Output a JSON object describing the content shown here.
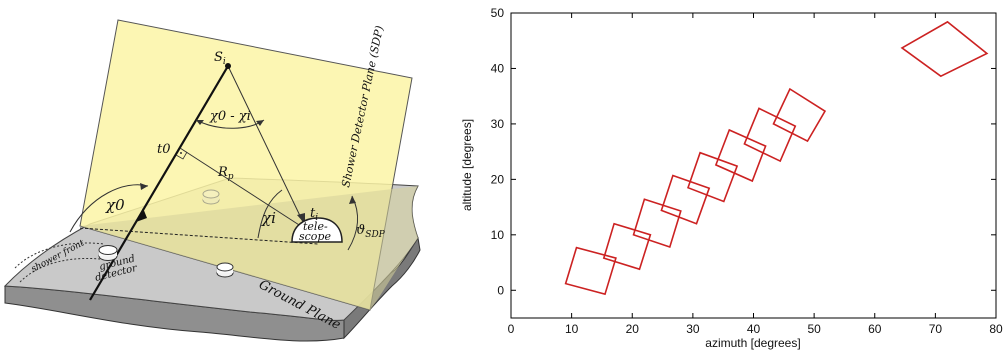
{
  "diagram": {
    "plane_label": "Shower Detector Plane (SDP)",
    "point_label_S": "S",
    "point_label_S_sub": "i",
    "angle_chi0_minus_chii": "χ0 - χi",
    "t0_label": "t0",
    "R_label": "R",
    "R_sub": "p",
    "chi0_label": "χ0",
    "chii_label": "χi",
    "ti_label": "t",
    "ti_sub": "i",
    "telescope_line1": "tele-",
    "telescope_line2": "scope",
    "theta_label": "ϑ",
    "theta_sub": "SDP",
    "shower_front_label": "shower front",
    "ground_detector_line1": "ground",
    "ground_detector_line2": "detector",
    "ground_plane_label": "Ground Plane",
    "colors": {
      "plane": "#fbf5a6",
      "ground": "#c9c9c9",
      "ground_edge": "#8c8c8c"
    }
  },
  "chart_data": {
    "type": "scatter",
    "xlabel": "azimuth [degrees]",
    "ylabel": "altitude [degrees]",
    "xlim": [
      0,
      80
    ],
    "ylim": [
      -5,
      50
    ],
    "xticks": [
      0,
      10,
      20,
      30,
      40,
      50,
      60,
      70,
      80
    ],
    "yticks": [
      0,
      10,
      20,
      30,
      40,
      50
    ],
    "mark_color": "#cc2222",
    "series": [
      {
        "quads": [
          [
            [
              9,
              1.2
            ],
            [
              10.8,
              7.7
            ],
            [
              17.3,
              5.8
            ],
            [
              15.5,
              -0.7
            ]
          ],
          [
            [
              15.3,
              5.8
            ],
            [
              17.0,
              12.0
            ],
            [
              23.0,
              10.0
            ],
            [
              21.2,
              3.8
            ]
          ],
          [
            [
              20.2,
              10.0
            ],
            [
              22.0,
              16.4
            ],
            [
              28.0,
              14.3
            ],
            [
              26.2,
              7.8
            ]
          ],
          [
            [
              24.8,
              14.4
            ],
            [
              26.7,
              20.7
            ],
            [
              32.7,
              18.4
            ],
            [
              30.6,
              12.0
            ]
          ],
          [
            [
              29.2,
              18.5
            ],
            [
              31.2,
              24.8
            ],
            [
              37.3,
              22.4
            ],
            [
              35.1,
              16.0
            ]
          ],
          [
            [
              33.8,
              22.6
            ],
            [
              36.0,
              28.9
            ],
            [
              42.0,
              26.0
            ],
            [
              39.8,
              19.7
            ]
          ],
          [
            [
              38.5,
              26.4
            ],
            [
              40.9,
              32.8
            ],
            [
              46.9,
              29.6
            ],
            [
              44.4,
              23.3
            ]
          ],
          [
            [
              43.3,
              30.0
            ],
            [
              46.0,
              36.3
            ],
            [
              51.8,
              32.3
            ],
            [
              48.9,
              26.9
            ]
          ],
          [
            [
              64.5,
              43.7
            ],
            [
              72.0,
              48.4
            ],
            [
              78.5,
              42.7
            ],
            [
              70.9,
              38.6
            ]
          ]
        ]
      }
    ]
  }
}
